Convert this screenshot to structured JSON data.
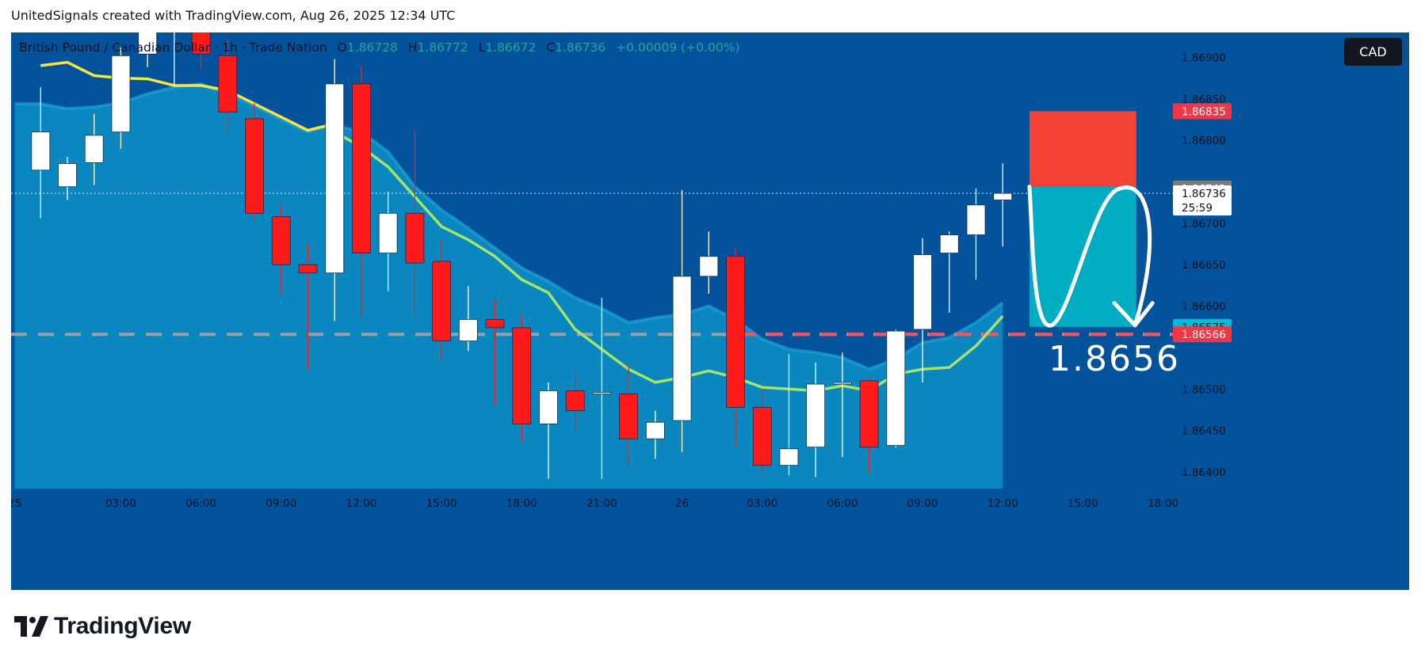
{
  "attribution": "UnitedSignals created with TradingView.com, Aug 26, 2025 12:34 UTC",
  "brand": {
    "name": "TradingView",
    "logo_icon": "tradingview-logo-icon"
  },
  "legend": {
    "symbol": "British Pound / Canadian Dollar · 1h · Trade Nation",
    "o_label": "O",
    "o": "1.86728",
    "h_label": "H",
    "h": "1.86772",
    "l_label": "L",
    "l": "1.86672",
    "c_label": "C",
    "c": "1.86736",
    "change": "+0.00009 (+0.00%)"
  },
  "currency_badge": "CAD",
  "colors": {
    "background": "#02529c",
    "bull_candle": "#ffffff",
    "bear_candle": "#ff1a1a",
    "ema_fast": "#f5e642",
    "ema_slow": "#a5e36b",
    "cloud": "#0a8ac0",
    "stop_zone": "#f44336",
    "target_zone": "#00acc1",
    "support_line": "#ff4d5e"
  },
  "chart_data": {
    "type": "candlestick",
    "symbol": "GBPCAD",
    "timeframe": "1h",
    "ylim": [
      1.8638,
      1.8693
    ],
    "y_ticks": [
      "1.86900",
      "1.86850",
      "1.86800",
      "1.86700",
      "1.86650",
      "1.86600",
      "1.86500",
      "1.86450",
      "1.86400"
    ],
    "x_ticks": [
      {
        "i": -0.97,
        "label": "25"
      },
      {
        "i": 3,
        "label": "03:00"
      },
      {
        "i": 6,
        "label": "06:00"
      },
      {
        "i": 9,
        "label": "09:00"
      },
      {
        "i": 12,
        "label": "12:00"
      },
      {
        "i": 15,
        "label": "15:00"
      },
      {
        "i": 18,
        "label": "18:00"
      },
      {
        "i": 21,
        "label": "21:00"
      },
      {
        "i": 24,
        "label": "26"
      },
      {
        "i": 27,
        "label": "03:00"
      },
      {
        "i": 30,
        "label": "06:00"
      },
      {
        "i": 33,
        "label": "09:00"
      },
      {
        "i": 36,
        "label": "12:00"
      },
      {
        "i": 39,
        "label": "15:00"
      },
      {
        "i": 42,
        "label": "18:00"
      }
    ],
    "candles": [
      {
        "o": 1.86764,
        "h": 1.86864,
        "l": 1.86706,
        "c": 1.8681
      },
      {
        "o": 1.86744,
        "h": 1.8678,
        "l": 1.86728,
        "c": 1.86772
      },
      {
        "o": 1.86773,
        "h": 1.86832,
        "l": 1.86746,
        "c": 1.86806
      },
      {
        "o": 1.8681,
        "h": 1.86912,
        "l": 1.8679,
        "c": 1.86902
      },
      {
        "o": 1.86904,
        "h": 1.86964,
        "l": 1.86888,
        "c": 1.86934
      },
      {
        "o": 1.86932,
        "h": 1.8698,
        "l": 1.86866,
        "c": 1.8695
      },
      {
        "o": 1.8695,
        "h": 1.8697,
        "l": 1.86886,
        "c": 1.86904
      },
      {
        "o": 1.86902,
        "h": 1.86922,
        "l": 1.8681,
        "c": 1.86834
      },
      {
        "o": 1.86826,
        "h": 1.86845,
        "l": 1.86704,
        "c": 1.86712
      },
      {
        "o": 1.86708,
        "h": 1.86722,
        "l": 1.86614,
        "c": 1.8665
      },
      {
        "o": 1.8665,
        "h": 1.86676,
        "l": 1.86524,
        "c": 1.8664
      },
      {
        "o": 1.8664,
        "h": 1.86898,
        "l": 1.86582,
        "c": 1.86868
      },
      {
        "o": 1.86868,
        "h": 1.8689,
        "l": 1.86588,
        "c": 1.86664
      },
      {
        "o": 1.86664,
        "h": 1.86738,
        "l": 1.86618,
        "c": 1.86712
      },
      {
        "o": 1.86712,
        "h": 1.86812,
        "l": 1.86586,
        "c": 1.86652
      },
      {
        "o": 1.86654,
        "h": 1.8668,
        "l": 1.86534,
        "c": 1.86558
      },
      {
        "o": 1.86558,
        "h": 1.86624,
        "l": 1.86546,
        "c": 1.86584
      },
      {
        "o": 1.86584,
        "h": 1.86608,
        "l": 1.8648,
        "c": 1.86574
      },
      {
        "o": 1.86574,
        "h": 1.8659,
        "l": 1.86436,
        "c": 1.86458
      },
      {
        "o": 1.86458,
        "h": 1.86508,
        "l": 1.86392,
        "c": 1.86498
      },
      {
        "o": 1.86498,
        "h": 1.8652,
        "l": 1.8645,
        "c": 1.86474
      },
      {
        "o": 1.86496,
        "h": 1.8661,
        "l": 1.86392,
        "c": 1.86496
      },
      {
        "o": 1.86494,
        "h": 1.8653,
        "l": 1.86408,
        "c": 1.8644
      },
      {
        "o": 1.8644,
        "h": 1.86474,
        "l": 1.86416,
        "c": 1.8646
      },
      {
        "o": 1.86462,
        "h": 1.8674,
        "l": 1.86424,
        "c": 1.86636
      },
      {
        "o": 1.86636,
        "h": 1.8669,
        "l": 1.86615,
        "c": 1.8666
      },
      {
        "o": 1.8666,
        "h": 1.8667,
        "l": 1.86432,
        "c": 1.86478
      },
      {
        "o": 1.86478,
        "h": 1.865,
        "l": 1.86396,
        "c": 1.86408
      },
      {
        "o": 1.86408,
        "h": 1.86542,
        "l": 1.86396,
        "c": 1.86428
      },
      {
        "o": 1.8643,
        "h": 1.86532,
        "l": 1.86394,
        "c": 1.86506
      },
      {
        "o": 1.86508,
        "h": 1.86544,
        "l": 1.86418,
        "c": 1.86508
      },
      {
        "o": 1.8651,
        "h": 1.86514,
        "l": 1.86398,
        "c": 1.8643
      },
      {
        "o": 1.86432,
        "h": 1.86572,
        "l": 1.8643,
        "c": 1.8657
      },
      {
        "o": 1.86572,
        "h": 1.86682,
        "l": 1.86508,
        "c": 1.86662
      },
      {
        "o": 1.86664,
        "h": 1.8669,
        "l": 1.86592,
        "c": 1.86686
      },
      {
        "o": 1.86686,
        "h": 1.86742,
        "l": 1.86632,
        "c": 1.86722
      },
      {
        "o": 1.86728,
        "h": 1.86772,
        "l": 1.86672,
        "c": 1.86736
      }
    ],
    "ema_fast_series": [
      [
        0,
        1.8689
      ],
      [
        1,
        1.86894
      ],
      [
        2,
        1.86878
      ],
      [
        3,
        1.86875
      ],
      [
        4,
        1.86874
      ],
      [
        5,
        1.86866
      ],
      [
        6,
        1.86866
      ],
      [
        7,
        1.8686
      ],
      [
        8,
        1.86844
      ],
      [
        9,
        1.86828
      ],
      [
        10,
        1.86812
      ],
      [
        11,
        1.8682
      ]
    ],
    "ema_slow_series": [
      [
        11,
        1.8681
      ],
      [
        12,
        1.86792
      ],
      [
        13,
        1.86768
      ],
      [
        14,
        1.86732
      ],
      [
        15,
        1.86696
      ],
      [
        16,
        1.8668
      ],
      [
        17,
        1.8666
      ],
      [
        18,
        1.86632
      ],
      [
        19,
        1.86616
      ],
      [
        20,
        1.86572
      ],
      [
        21,
        1.86548
      ],
      [
        22,
        1.86524
      ],
      [
        23,
        1.86508
      ],
      [
        24,
        1.86514
      ],
      [
        25,
        1.86522
      ],
      [
        26,
        1.86514
      ],
      [
        27,
        1.86502
      ],
      [
        28,
        1.865
      ],
      [
        29,
        1.86498
      ],
      [
        30,
        1.86504
      ],
      [
        31,
        1.86498
      ],
      [
        32,
        1.86518
      ],
      [
        33,
        1.86524
      ],
      [
        34,
        1.86526
      ],
      [
        35,
        1.86552
      ],
      [
        36,
        1.86588
      ]
    ],
    "cloud_upper": [
      [
        -0.97,
        1.86844
      ],
      [
        0,
        1.86844
      ],
      [
        1,
        1.86838
      ],
      [
        2,
        1.8684
      ],
      [
        3,
        1.86845
      ],
      [
        4,
        1.86856
      ],
      [
        5,
        1.86864
      ],
      [
        6,
        1.86868
      ],
      [
        7,
        1.86855
      ],
      [
        8,
        1.86842
      ],
      [
        9,
        1.86825
      ],
      [
        10,
        1.8681
      ],
      [
        11,
        1.86818
      ],
      [
        12,
        1.8681
      ],
      [
        13,
        1.86786
      ],
      [
        14,
        1.86744
      ],
      [
        15,
        1.86716
      ],
      [
        16,
        1.86694
      ],
      [
        17,
        1.8667
      ],
      [
        18,
        1.86646
      ],
      [
        19,
        1.8663
      ],
      [
        20,
        1.8661
      ],
      [
        21,
        1.86597
      ],
      [
        22,
        1.8658
      ],
      [
        23,
        1.86586
      ],
      [
        24,
        1.8659
      ],
      [
        25,
        1.866
      ],
      [
        26,
        1.86584
      ],
      [
        27,
        1.8656
      ],
      [
        28,
        1.86548
      ],
      [
        29,
        1.86544
      ],
      [
        30,
        1.86538
      ],
      [
        31,
        1.86524
      ],
      [
        32,
        1.86536
      ],
      [
        33,
        1.86556
      ],
      [
        34,
        1.86562
      ],
      [
        35,
        1.8658
      ],
      [
        36,
        1.86604
      ]
    ],
    "current_price": 1.86736,
    "countdown": "25:59",
    "price_labels": [
      {
        "label": "1.86835",
        "price": 1.86835,
        "kind": "stop"
      },
      {
        "label": "1.86742",
        "price": 1.86742,
        "kind": "gray"
      },
      {
        "label": "1.86575",
        "price": 1.86575,
        "kind": "target"
      },
      {
        "label": "1.86566",
        "price": 1.86566,
        "kind": "support"
      }
    ],
    "support_line": 1.86566,
    "position": {
      "type": "short",
      "entry": 1.86744,
      "stop": 1.86835,
      "target": 1.86575,
      "start_i": 37.0,
      "end_i": 41.0
    },
    "annotation": "1.8656"
  }
}
